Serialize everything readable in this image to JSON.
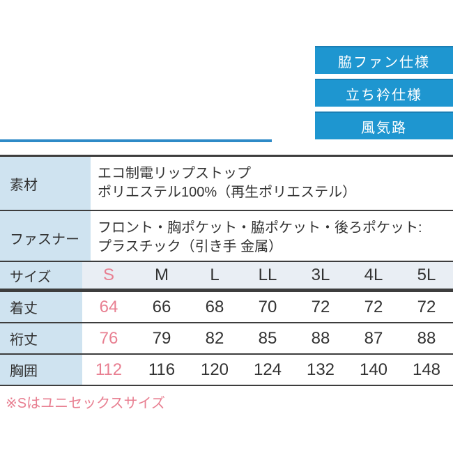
{
  "badges": {
    "items": [
      {
        "label": "脇ファン仕様"
      },
      {
        "label": "立ち衿仕様"
      },
      {
        "label": "風気路"
      }
    ]
  },
  "colors": {
    "badge_blue": "#1e96d0",
    "divider_blue": "#2e8ac7",
    "label_cell_blue": "#cfe3f0",
    "header_row_blue": "#e9eef4",
    "highlight_pink": "#e87f91",
    "border_dark": "#3d3d3d"
  },
  "spec_table": {
    "rows": [
      {
        "label": "素材",
        "lines": [
          "エコ制電リップストップ",
          "ポリエステル100%（再生ポリエステル）"
        ]
      },
      {
        "label": "ファスナー",
        "lines": [
          "フロント・胸ポケット・脇ポケット・後ろポケット:",
          "プラスチック（引き手 金属）"
        ]
      }
    ]
  },
  "size_table": {
    "header_label": "サイズ",
    "sizes": [
      "S",
      "M",
      "L",
      "LL",
      "3L",
      "4L",
      "5L"
    ],
    "highlighted_size": "S",
    "rows": [
      {
        "label": "着丈",
        "values": [
          "64",
          "66",
          "68",
          "70",
          "72",
          "72",
          "72"
        ]
      },
      {
        "label": "裄丈",
        "values": [
          "76",
          "79",
          "82",
          "85",
          "88",
          "87",
          "88"
        ]
      },
      {
        "label": "胸囲",
        "values": [
          "112",
          "116",
          "120",
          "124",
          "132",
          "140",
          "148"
        ]
      }
    ]
  },
  "note": {
    "text": "※Sはユニセックスサイズ"
  }
}
